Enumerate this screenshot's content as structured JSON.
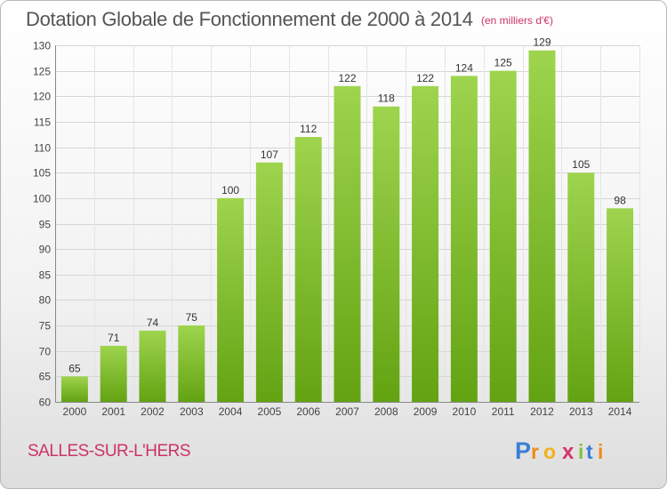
{
  "header": {
    "title": "Dotation Globale de Fonctionnement de 2000 à 2014",
    "subtitle": "(en milliers d'€)"
  },
  "footer": {
    "city": "SALLES-SUR-L'HERS",
    "logo_text": "Proxiti"
  },
  "colors": {
    "bar_light": "#9ed44e",
    "bar_dark": "#63a312",
    "title": "#555555",
    "accent": "#cc3366"
  },
  "chart_data": {
    "type": "bar",
    "title": "Dotation Globale de Fonctionnement de 2000 à 2014",
    "unit": "(en milliers d'€)",
    "categories": [
      "2000",
      "2001",
      "2002",
      "2003",
      "2004",
      "2005",
      "2006",
      "2007",
      "2008",
      "2009",
      "2010",
      "2011",
      "2012",
      "2013",
      "2014"
    ],
    "values": [
      65,
      71,
      74,
      75,
      100,
      107,
      112,
      122,
      118,
      122,
      124,
      125,
      129,
      105,
      98
    ],
    "ylim": [
      60,
      130
    ],
    "yticks": [
      60,
      65,
      70,
      75,
      80,
      85,
      90,
      95,
      100,
      105,
      110,
      115,
      120,
      125,
      130
    ],
    "xlabel": "",
    "ylabel": "",
    "grid": true
  }
}
